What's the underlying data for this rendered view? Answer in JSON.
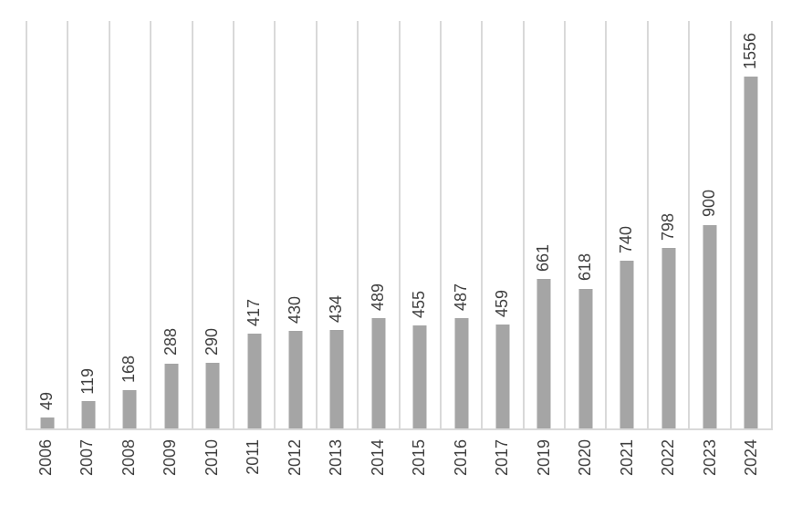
{
  "chart_data": {
    "type": "bar",
    "categories": [
      "2006",
      "2007",
      "2008",
      "2009",
      "2010",
      "2011",
      "2012",
      "2013",
      "2014",
      "2015",
      "2016",
      "2017",
      "2019",
      "2020",
      "2021",
      "2022",
      "2023",
      "2024"
    ],
    "values": [
      49,
      119,
      168,
      288,
      290,
      417,
      430,
      434,
      489,
      455,
      487,
      459,
      661,
      618,
      740,
      798,
      900,
      1556
    ],
    "title": "",
    "xlabel": "",
    "ylabel": "",
    "ylim": [
      0,
      1800
    ],
    "grid": "vertical-category-gridlines-only",
    "legend_position": "none",
    "data_labels": "outside-end",
    "data_label_rotation": -90,
    "axis_label_rotation": -90,
    "colors": {
      "bar_fill": "#A5A5A5",
      "gridline": "#D9D9D9",
      "axis_line": "#D9D9D9",
      "label_text": "#404040",
      "background": "#FFFFFF"
    }
  }
}
